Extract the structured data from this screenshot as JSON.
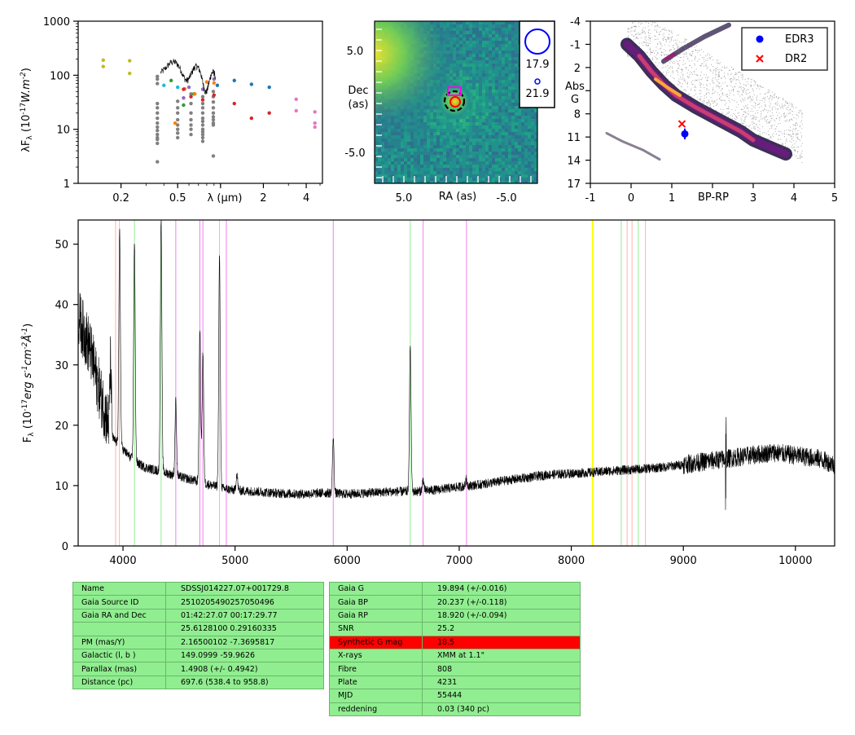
{
  "sed": {
    "ylabel": "λF_λ (10^-17 W.m^-2)",
    "xlabel": "λ (μm)",
    "yticks": [
      "1",
      "10",
      "100",
      "1000"
    ],
    "xticks": [
      "0.2",
      "0.5",
      "1",
      "2",
      "4"
    ]
  },
  "image": {
    "ylabel_line1": "Dec",
    "ylabel_line2": "(as)",
    "xlabel": "RA (as)",
    "yticks": [
      "5.0",
      "-5.0"
    ],
    "xticks": [
      "5.0",
      "-5.0"
    ],
    "legend_big": "17.9",
    "legend_small": "21.9"
  },
  "hr": {
    "ylabel_line1": "Abs",
    "ylabel_line2": "G",
    "xlabel": "BP-RP",
    "yticks": [
      "-4",
      "-1",
      "2",
      "5",
      "8",
      "11",
      "14",
      "17"
    ],
    "xticks": [
      "-1",
      "0",
      "1",
      "2",
      "3",
      "4",
      "5"
    ],
    "legend": [
      {
        "label": "EDR3",
        "color": "#0000ff",
        "marker": "circle"
      },
      {
        "label": "DR2",
        "color": "#ff0000",
        "marker": "cross"
      }
    ]
  },
  "spectrum": {
    "ylabel": "F_λ (10^-17 erg s^-1 cm^-2 Å^-1)",
    "yticks": [
      "0",
      "10",
      "20",
      "30",
      "40",
      "50"
    ],
    "xticks": [
      "4000",
      "5000",
      "6000",
      "7000",
      "8000",
      "9000",
      "10000"
    ]
  },
  "chart_data": [
    {
      "type": "scatter",
      "panel": "sed",
      "xlabel": "λ (μm)",
      "ylabel": "λF_λ (10^-17 W.m^-2)",
      "xscale": "log",
      "yscale": "log",
      "xlim": [
        0.1,
        5.2
      ],
      "ylim": [
        1,
        1000
      ],
      "series": [
        {
          "color": "#bcbd22",
          "x": [
            0.15,
            0.15,
            0.23,
            0.23
          ],
          "y": [
            190,
            145,
            185,
            108
          ]
        },
        {
          "color": "#808080",
          "x": [
            0.36,
            0.36,
            0.36,
            0.36,
            0.36,
            0.36,
            0.36,
            0.36,
            0.36,
            0.36,
            0.36,
            0.36,
            0.36,
            0.36,
            0.5,
            0.5,
            0.5,
            0.5,
            0.5,
            0.5,
            0.5,
            0.5,
            0.62,
            0.62,
            0.62,
            0.62,
            0.62,
            0.62,
            0.62,
            0.75,
            0.75,
            0.75,
            0.75,
            0.75,
            0.75,
            0.75,
            0.75,
            0.75,
            0.75,
            0.75,
            0.75,
            0.89,
            0.89,
            0.89,
            0.89,
            0.89,
            0.89,
            0.89,
            0.89,
            0.89,
            0.36,
            0.89
          ],
          "y": [
            95,
            85,
            30,
            25,
            20,
            16,
            13,
            11,
            9.5,
            8,
            7,
            6.5,
            5.5,
            2.5,
            33,
            25,
            20,
            15,
            12,
            10,
            8.5,
            7,
            45,
            30,
            20,
            15,
            12,
            10,
            8,
            40,
            30,
            25,
            20,
            16,
            14,
            12,
            10,
            9,
            8,
            7,
            6,
            50,
            40,
            32,
            25,
            20,
            17,
            15,
            13,
            12,
            70,
            3.2
          ]
        },
        {
          "color": "#2ca02c",
          "x": [
            0.45,
            0.55,
            0.65
          ],
          "y": [
            80,
            28,
            45
          ]
        },
        {
          "color": "#ff7f0e",
          "x": [
            0.48,
            0.56,
            0.66,
            0.8,
            0.9
          ],
          "y": [
            13,
            56,
            45,
            75,
            72
          ]
        },
        {
          "color": "#d62728",
          "x": [
            0.55,
            0.62,
            0.75,
            0.9,
            1.25,
            1.65,
            2.2
          ],
          "y": [
            55,
            40,
            35,
            43,
            30,
            16,
            20
          ]
        },
        {
          "color": "#1f77b4",
          "x": [
            0.95,
            1.25,
            1.65,
            2.2
          ],
          "y": [
            65,
            80,
            68,
            60
          ]
        },
        {
          "color": "#17becf",
          "x": [
            0.4,
            0.5
          ],
          "y": [
            65,
            60
          ]
        },
        {
          "color": "#9467bd",
          "x": [
            0.55,
            0.6,
            0.75,
            0.9
          ],
          "y": [
            38,
            60,
            55,
            85
          ]
        },
        {
          "color": "#e377c2",
          "x": [
            3.4,
            3.4,
            4.6,
            4.6,
            4.6
          ],
          "y": [
            36,
            22,
            21,
            13,
            11
          ]
        }
      ]
    },
    {
      "type": "heatmap",
      "panel": "image",
      "xlabel": "RA (as)",
      "ylabel": "Dec (as)",
      "xlim": [
        8.0,
        -8.0
      ],
      "ylim": [
        -8.0,
        8.0
      ],
      "source_position": [
        0.0,
        -0.3
      ]
    },
    {
      "type": "scatter",
      "panel": "hr",
      "xlabel": "BP-RP",
      "ylabel": "Abs G",
      "xlim": [
        -1,
        5
      ],
      "ylim": [
        17,
        -4
      ],
      "series": [
        {
          "name": "EDR3",
          "color": "#0000ff",
          "x": [
            1.32
          ],
          "y": [
            10.6
          ],
          "yerr": [
            0.7
          ]
        },
        {
          "name": "DR2",
          "color": "#ff0000",
          "x": [
            1.25
          ],
          "y": [
            9.3
          ]
        }
      ]
    },
    {
      "type": "line",
      "panel": "spectrum",
      "ylabel": "F_λ (10^-17 erg s^-1 cm^-2 Å^-1)",
      "xlim": [
        3600,
        10350
      ],
      "ylim": [
        0,
        54
      ],
      "continuum": {
        "x": [
          3600,
          3700,
          3800,
          3900,
          4000,
          4100,
          4200,
          4300,
          4400,
          4500,
          4600,
          4700,
          4800,
          4900,
          5000,
          5200,
          5400,
          5600,
          5800,
          6000,
          6200,
          6400,
          6600,
          6800,
          7000,
          7200,
          7400,
          7600,
          7800,
          8000,
          8200,
          8400,
          8600,
          8800,
          9000,
          9200,
          9400,
          9600,
          9800,
          10000,
          10200,
          10350
        ],
        "y": [
          38,
          33,
          25,
          18,
          16,
          14,
          13,
          12.5,
          12,
          11.5,
          11,
          10.5,
          10,
          9.5,
          9.2,
          9.0,
          8.7,
          8.6,
          8.8,
          8.6,
          8.8,
          9.0,
          9.0,
          9.3,
          9.8,
          10.2,
          10.8,
          11.3,
          11.8,
          12.0,
          12.2,
          12.5,
          12.7,
          13.0,
          13.5,
          14.0,
          14.5,
          15.0,
          15.5,
          15.0,
          14.5,
          13.5
        ]
      },
      "emission_lines": {
        "x": [
          3889,
          3970,
          4102,
          4340,
          4471,
          4686,
          4713,
          4861,
          5016,
          5876,
          6563,
          6678,
          7065
        ],
        "y": [
          30,
          52,
          50,
          54,
          24,
          36,
          32,
          48,
          12,
          18,
          33,
          11,
          11
        ]
      },
      "marker_lines": [
        {
          "color": "#ffb0b0",
          "x": [
            3934,
            3968,
            8498,
            8542,
            8662
          ]
        },
        {
          "color": "#90ee90",
          "x": [
            4102,
            4340,
            4861,
            6563,
            8446,
            8598
          ]
        },
        {
          "color": "#ee82ee",
          "x": [
            4471,
            4686,
            4713,
            4922,
            5876,
            6678,
            7065
          ]
        },
        {
          "color": "#ffff00",
          "x": [
            8190
          ]
        }
      ]
    }
  ],
  "table_left": [
    [
      "Name",
      "SDSSJ014227.07+001729.8"
    ],
    [
      "Gaia Source ID",
      "2510205490257050496"
    ],
    [
      "Gaia RA and Dec",
      "01:42:27.07    00:17:29.77"
    ],
    [
      "",
      "25.6128100    0.29160335"
    ],
    [
      "PM (mas/Y)",
      "2.16500102    -7.3695817"
    ],
    [
      "Galactic (l, b )",
      "149.0999    -59.9626"
    ],
    [
      "Parallax (mas)",
      "1.4908 (+/- 0.4942)"
    ],
    [
      "Distance (pc)",
      "697.6 (538.4 to 958.8)"
    ]
  ],
  "table_right": [
    [
      "Gaia G",
      "19.894 (+/-0.016)"
    ],
    [
      "Gaia BP",
      "20.237 (+/-0.118)"
    ],
    [
      "Gaia RP",
      "18.920 (+/-0.094)"
    ],
    [
      "SNR",
      "25.2"
    ],
    [
      "Synthetic G mag",
      "18.5"
    ],
    [
      "X-rays",
      "XMM at 1.1\""
    ],
    [
      "Fibre",
      "808"
    ],
    [
      "Plate",
      "4231"
    ],
    [
      "MJD",
      "55444"
    ],
    [
      "reddening",
      "0.03 (340 pc)"
    ]
  ],
  "highlight_row": "Synthetic G mag",
  "colors": {
    "table_bg": "#90ee90",
    "highlight": "#ff0000",
    "spectrum": "#000000"
  }
}
